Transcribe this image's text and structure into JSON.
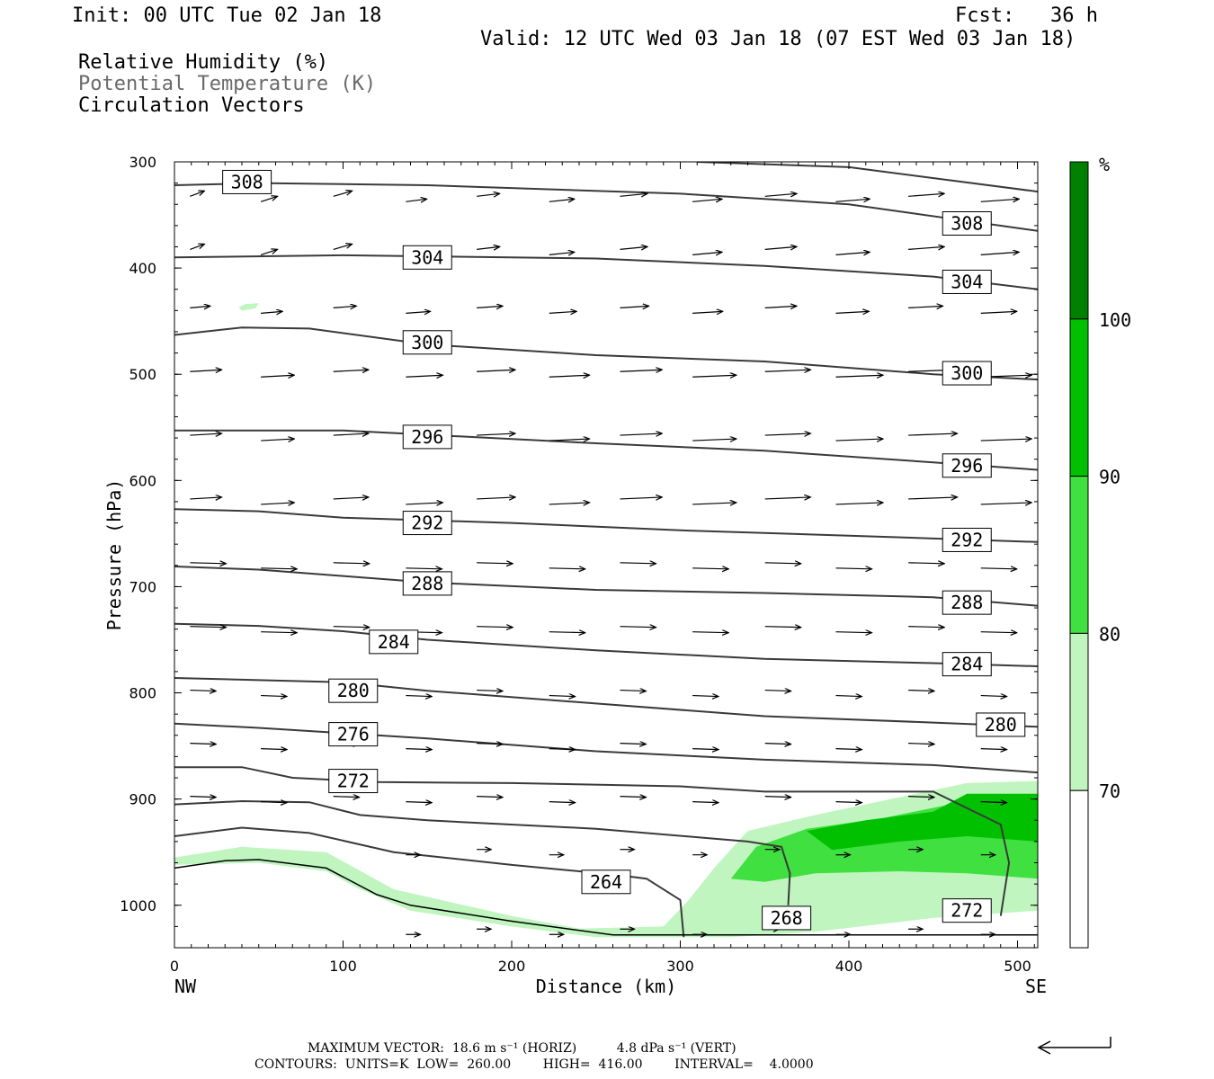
{
  "header": {
    "init": "Init: 00 UTC Tue 02 Jan 18",
    "fcst": "Fcst:   36 h",
    "valid": "Valid: 12 UTC Wed 03 Jan 18 (07 EST Wed 03 Jan 18)",
    "fields": [
      "Relative Humidity (%)",
      "Potential Temperature (K)",
      "Circulation Vectors"
    ]
  },
  "chart_data": {
    "type": "cross-section",
    "xlabel": "Distance (km)",
    "ylabel": "Pressure (hPa)",
    "xlim": [
      0,
      512
    ],
    "ylim": [
      300,
      1040
    ],
    "x_ticks": [
      "0",
      "100",
      "200",
      "300",
      "400",
      "500"
    ],
    "y_ticks": [
      "300",
      "400",
      "500",
      "600",
      "700",
      "800",
      "900",
      "1000"
    ],
    "x_end_labels": {
      "left": "NW",
      "right": "SE"
    },
    "colorbar": {
      "unit": "%",
      "levels": [
        "70",
        "80",
        "90",
        "100"
      ],
      "colors": [
        "#ffffff",
        "#c0f5c0",
        "#40e040",
        "#00c000",
        "#008000"
      ]
    },
    "theta_contours": [
      {
        "label": "308",
        "points": [
          [
            0,
            322
          ],
          [
            50,
            320
          ],
          [
            150,
            322
          ],
          [
            300,
            330
          ],
          [
            400,
            340
          ],
          [
            512,
            365
          ]
        ],
        "label_pos": [
          [
            43,
            319
          ],
          [
            470,
            358
          ]
        ]
      },
      {
        "label": "304",
        "points": [
          [
            0,
            390
          ],
          [
            100,
            388
          ],
          [
            250,
            391
          ],
          [
            350,
            398
          ],
          [
            450,
            408
          ],
          [
            512,
            420
          ]
        ],
        "label_pos": [
          [
            150,
            390
          ],
          [
            470,
            413
          ]
        ]
      },
      {
        "label": "300",
        "points": [
          [
            0,
            463
          ],
          [
            40,
            456
          ],
          [
            80,
            457
          ],
          [
            150,
            472
          ],
          [
            250,
            482
          ],
          [
            350,
            488
          ],
          [
            450,
            500
          ],
          [
            512,
            505
          ]
        ],
        "label_pos": [
          [
            150,
            470
          ],
          [
            470,
            499
          ]
        ]
      },
      {
        "label": "296",
        "points": [
          [
            0,
            553
          ],
          [
            100,
            553
          ],
          [
            150,
            557
          ],
          [
            250,
            565
          ],
          [
            350,
            572
          ],
          [
            450,
            583
          ],
          [
            512,
            590
          ]
        ],
        "label_pos": [
          [
            150,
            559
          ],
          [
            470,
            586
          ]
        ]
      },
      {
        "label": "292",
        "points": [
          [
            0,
            627
          ],
          [
            50,
            629
          ],
          [
            100,
            635
          ],
          [
            200,
            640
          ],
          [
            300,
            647
          ],
          [
            400,
            652
          ],
          [
            512,
            658
          ]
        ],
        "label_pos": [
          [
            150,
            640
          ],
          [
            470,
            656
          ]
        ]
      },
      {
        "label": "288",
        "points": [
          [
            0,
            681
          ],
          [
            50,
            684
          ],
          [
            100,
            690
          ],
          [
            150,
            696
          ],
          [
            250,
            703
          ],
          [
            350,
            706
          ],
          [
            450,
            710
          ],
          [
            512,
            718
          ]
        ],
        "label_pos": [
          [
            150,
            697
          ],
          [
            470,
            715
          ]
        ]
      },
      {
        "label": "284",
        "points": [
          [
            0,
            735
          ],
          [
            50,
            737
          ],
          [
            100,
            742
          ],
          [
            150,
            750
          ],
          [
            250,
            760
          ],
          [
            350,
            768
          ],
          [
            450,
            772
          ],
          [
            512,
            775
          ]
        ],
        "label_pos": [
          [
            130,
            752
          ],
          [
            470,
            773
          ]
        ]
      },
      {
        "label": "280",
        "points": [
          [
            0,
            786
          ],
          [
            50,
            788
          ],
          [
            100,
            790
          ],
          [
            150,
            798
          ],
          [
            250,
            810
          ],
          [
            350,
            822
          ],
          [
            450,
            828
          ],
          [
            512,
            832
          ]
        ],
        "label_pos": [
          [
            106,
            798
          ],
          [
            490,
            830
          ]
        ]
      },
      {
        "label": "276",
        "points": [
          [
            0,
            829
          ],
          [
            50,
            833
          ],
          [
            100,
            838
          ],
          [
            150,
            843
          ],
          [
            250,
            855
          ],
          [
            350,
            863
          ],
          [
            450,
            868
          ],
          [
            512,
            875
          ]
        ],
        "label_pos": [
          [
            106,
            839
          ],
          [
            null,
            null
          ]
        ]
      },
      {
        "label": "272",
        "points": [
          [
            0,
            870
          ],
          [
            40,
            870
          ],
          [
            70,
            880
          ],
          [
            120,
            884
          ],
          [
            200,
            885
          ],
          [
            300,
            888
          ],
          [
            350,
            893
          ],
          [
            450,
            893
          ],
          [
            490,
            924
          ],
          [
            495,
            960
          ],
          [
            490,
            1010
          ]
        ],
        "label_pos": [
          [
            106,
            883
          ],
          [
            470,
            1005
          ]
        ]
      },
      {
        "label": "268",
        "points": [
          [
            0,
            905
          ],
          [
            40,
            902
          ],
          [
            80,
            903
          ],
          [
            110,
            915
          ],
          [
            150,
            920
          ],
          [
            250,
            928
          ],
          [
            340,
            940
          ],
          [
            360,
            945
          ],
          [
            365,
            970
          ],
          [
            364,
            1000
          ]
        ],
        "label_pos": [
          [
            363,
            1012
          ],
          [
            null,
            null
          ]
        ]
      },
      {
        "label": "264",
        "points": [
          [
            0,
            935
          ],
          [
            40,
            927
          ],
          [
            80,
            932
          ],
          [
            130,
            950
          ],
          [
            200,
            962
          ],
          [
            260,
            971
          ],
          [
            280,
            975
          ],
          [
            300,
            995
          ],
          [
            302,
            1030
          ]
        ],
        "label_pos": [
          [
            256,
            978
          ],
          [
            null,
            null
          ]
        ]
      }
    ],
    "terrain": [
      [
        0,
        965
      ],
      [
        30,
        958
      ],
      [
        50,
        957
      ],
      [
        90,
        965
      ],
      [
        120,
        990
      ],
      [
        140,
        1000
      ],
      [
        200,
        1015
      ],
      [
        260,
        1028
      ],
      [
        512,
        1028
      ]
    ],
    "vectors_count": 176
  },
  "footer": {
    "max_vector": "MAXIMUM VECTOR:  18.6 m s⁻¹ (HORIZ)          4.8 dPa s⁻¹ (VERT)",
    "contours": "CONTOURS:  UNITS=K  LOW=  260.00        HIGH=  416.00        INTERVAL=    4.0000"
  }
}
